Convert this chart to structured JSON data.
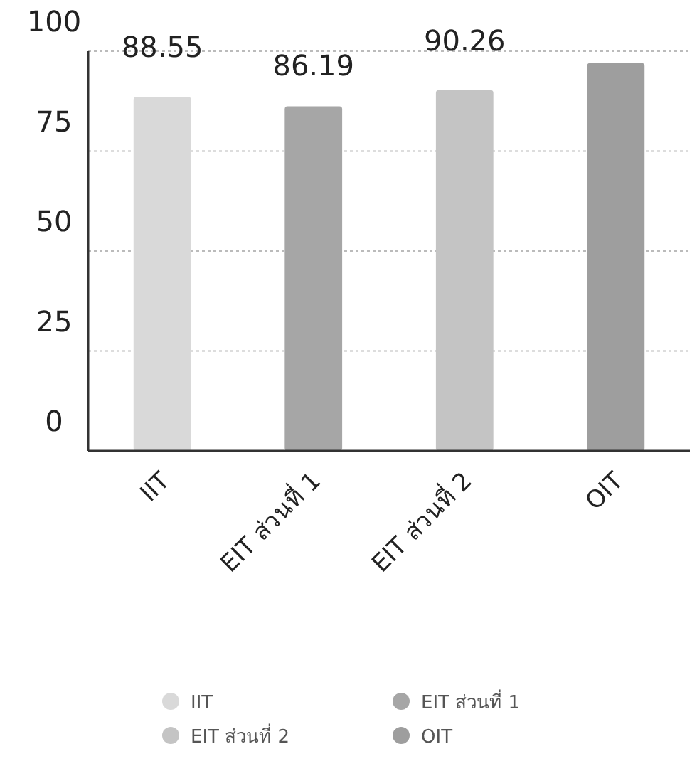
{
  "chart_data": {
    "type": "bar",
    "stacked": true,
    "categories": [
      "IIT",
      "EIT ส่วนที่ 1",
      "EIT ส่วนที่ 2",
      "OIT"
    ],
    "series": [
      {
        "name": "IIT",
        "color": "#d9d9d9",
        "values": [
          88.55,
          null,
          null,
          null
        ],
        "value_labels": [
          "88.55",
          null,
          null,
          null
        ]
      },
      {
        "name": "EIT ส่วนที่ 1",
        "color": "#a6a6a6",
        "values": [
          null,
          86.19,
          null,
          null
        ],
        "value_labels": [
          null,
          "86.19",
          null,
          null
        ]
      },
      {
        "name": "EIT ส่วนที่ 2",
        "color": "#c4c4c4",
        "values": [
          null,
          null,
          90.26,
          null
        ],
        "value_labels": [
          null,
          null,
          "90.26",
          null
        ]
      },
      {
        "name": "OIT",
        "color": "#9e9e9e",
        "values": [
          null,
          null,
          null,
          97
        ]
      }
    ],
    "ylim": [
      0,
      100
    ],
    "yticks": [
      0,
      25,
      50,
      75,
      100
    ],
    "grid": "y",
    "legend": "bottom"
  }
}
